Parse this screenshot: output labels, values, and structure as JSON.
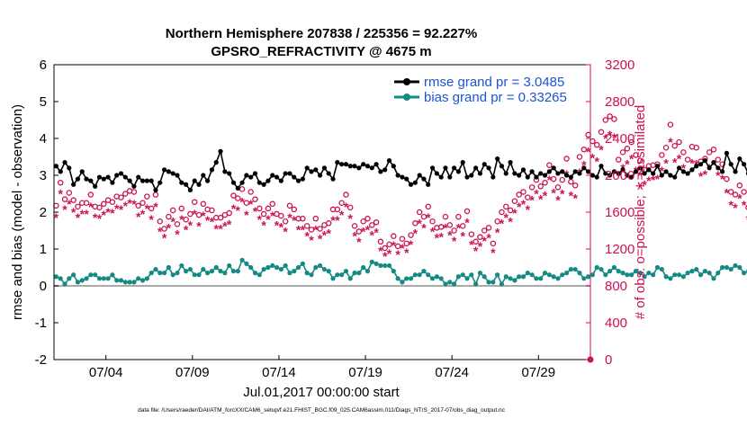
{
  "chart_data": {
    "type": "line",
    "title_line1": "Northern Hemisphere 207838 / 225356 = 92.227%",
    "title_line2": "GPSRO_REFRACTIVITY @ 4675 m",
    "ylabel_left": "rmse and bias (model - observation)",
    "ylabel_right": "# of obs: o=possible; ∗=assimilated",
    "xlabel": "Jul.01,2017 00:00:00 start",
    "footnote": "data file: /Users/raeder/DAI/ATM_forcXX/CAM6_setup/f.e21.FHIST_BGC.f09_025.CAM6assim.011/Diags_NTrS_2017-07/obs_diag_output.nc",
    "xlim": [
      1,
      32
    ],
    "ylim_left": [
      -2,
      6
    ],
    "ylim_right": [
      0,
      3200
    ],
    "x_ticks": [
      4,
      9,
      14,
      19,
      24,
      29
    ],
    "x_tick_labels": [
      "07/04",
      "07/09",
      "07/14",
      "07/19",
      "07/24",
      "07/29"
    ],
    "y_left_ticks": [
      -2,
      -1,
      0,
      1,
      2,
      3,
      4,
      5,
      6
    ],
    "y_left_tick_labels": [
      "-2",
      "-1",
      "0",
      "1",
      "2",
      "3",
      "4",
      "5",
      "6"
    ],
    "y_right_ticks": [
      0,
      400,
      800,
      1200,
      1600,
      2000,
      2400,
      2800,
      3200
    ],
    "y_right_tick_labels": [
      "0",
      "400",
      "800",
      "1200",
      "1600",
      "2000",
      "2400",
      "2800",
      "3200"
    ],
    "legend_position": "top-right",
    "legend": [
      {
        "key": "rmse",
        "label": "rmse grand pr = 3.0485"
      },
      {
        "key": "bias",
        "label": "bias grand pr = 0.33265"
      }
    ],
    "colors": {
      "rmse": "#000000",
      "bias": "#138a84",
      "obs": "#cc1155",
      "zero_line": "#aaaaaa",
      "legend_text": "#1a55d6"
    },
    "x_start": 1.125,
    "x_step": 0.25,
    "series": [
      {
        "name": "rmse",
        "values": [
          3.25,
          3.1,
          3.35,
          3.2,
          2.75,
          2.9,
          3.1,
          2.9,
          2.85,
          2.7,
          2.95,
          2.9,
          2.95,
          2.8,
          3.0,
          3.05,
          2.95,
          2.85,
          2.7,
          2.95,
          2.85,
          2.85,
          2.85,
          2.6,
          2.8,
          3.15,
          3.1,
          3.05,
          3.0,
          2.8,
          2.75,
          2.6,
          2.85,
          2.75,
          3.0,
          2.85,
          3.15,
          3.35,
          3.65,
          3.1,
          3.05,
          2.8,
          2.65,
          2.8,
          3.0,
          2.95,
          3.05,
          2.8,
          2.75,
          2.85,
          3.0,
          2.95,
          2.85,
          3.05,
          3.05,
          2.95,
          2.85,
          2.9,
          3.2,
          3.1,
          3.15,
          3.0,
          3.2,
          3.05,
          2.9,
          3.35,
          3.3,
          3.3,
          3.25,
          3.25,
          3.2,
          3.3,
          3.25,
          3.2,
          3.3,
          3.1,
          3.15,
          3.4,
          3.25,
          3.0,
          2.95,
          2.9,
          2.75,
          2.8,
          3.0,
          2.9,
          2.75,
          3.2,
          3.05,
          2.95,
          3.2,
          2.95,
          3.2,
          3.1,
          3.35,
          2.95,
          3.0,
          3.2,
          3.05,
          3.3,
          3.2,
          2.95,
          3.45,
          3.25,
          3.05,
          3.35,
          3.05,
          3.0,
          3.15,
          2.95,
          3.1,
          2.95,
          3.05,
          3.0,
          3.1,
          3.2,
          3.05,
          3.1,
          3.0,
          2.95,
          3.1,
          3.05,
          3.2,
          3.1,
          3.0,
          2.95,
          3.25,
          3.05,
          3.0,
          3.1,
          3.05,
          3.15,
          3.0,
          2.95,
          3.1,
          3.2,
          3.05,
          3.15,
          3.05,
          3.25,
          3.0,
          3.1,
          3.0,
          2.95,
          3.2,
          3.1,
          3.05,
          3.15,
          3.25,
          3.3,
          3.4,
          3.2,
          3.35,
          3.2,
          3.1,
          3.6,
          3.3,
          3.1,
          3.45,
          3.3,
          3.05,
          3.25,
          3.55,
          3.05,
          3.2,
          3.1,
          2.95,
          3.15,
          3.4,
          3.1,
          3.3,
          3.0,
          3.15,
          3.2,
          3.0,
          3.15,
          3.0,
          3.15,
          3.05,
          2.95,
          3.1,
          3.2,
          3.0,
          3.3,
          3.2,
          3.05,
          3.0,
          2.95,
          3.1,
          3.05,
          3.0,
          3.15,
          3.2,
          3.0,
          3.05,
          3.15,
          3.1,
          3.05,
          3.0,
          3.35,
          3.25,
          3.1,
          3.05,
          3.0,
          3.1,
          3.0,
          3.2,
          3.05,
          3.0,
          3.1,
          2.95,
          3.0,
          3.05,
          3.0,
          3.3,
          3.1,
          3.1,
          3.2,
          3.0,
          3.05,
          3.0,
          3.0,
          3.3,
          3.0,
          3.05,
          3.25,
          3.1,
          3.05,
          3.0,
          3.35,
          3.15,
          3.1,
          3.0,
          3.05,
          3.15,
          3.0,
          2.95,
          3.05,
          3.1,
          3.0,
          2.95,
          3.05,
          3.0,
          2.95,
          3.0,
          3.05,
          3.1,
          3.0,
          3.05,
          2.95,
          3.15,
          3.05,
          3.0,
          3.1,
          3.05,
          3.05,
          3.0,
          3.1,
          3.0,
          3.0,
          3.05,
          2.95,
          3.0,
          3.1,
          3.05,
          3.0,
          3.05,
          2.95,
          3.0,
          2.95,
          3.0,
          3.05,
          3.1,
          3.0,
          2.95
        ]
      },
      {
        "name": "bias",
        "values": [
          0.25,
          0.2,
          0.05,
          0.2,
          0.3,
          0.1,
          0.15,
          0.2,
          0.3,
          0.3,
          0.2,
          0.2,
          0.2,
          0.3,
          0.15,
          0.15,
          0.1,
          0.1,
          0.1,
          0.2,
          0.15,
          0.2,
          0.35,
          0.45,
          0.35,
          0.35,
          0.5,
          0.3,
          0.35,
          0.55,
          0.4,
          0.45,
          0.3,
          0.3,
          0.45,
          0.35,
          0.4,
          0.5,
          0.4,
          0.35,
          0.55,
          0.4,
          0.4,
          0.7,
          0.6,
          0.5,
          0.35,
          0.3,
          0.45,
          0.5,
          0.55,
          0.5,
          0.45,
          0.55,
          0.35,
          0.4,
          0.5,
          0.6,
          0.35,
          0.3,
          0.5,
          0.55,
          0.45,
          0.4,
          0.2,
          0.3,
          0.3,
          0.4,
          0.2,
          0.35,
          0.35,
          0.5,
          0.4,
          0.65,
          0.6,
          0.55,
          0.55,
          0.55,
          0.4,
          0.2,
          0.1,
          0.2,
          0.2,
          0.3,
          0.3,
          0.4,
          0.3,
          0.2,
          0.25,
          0.2,
          0.05,
          0.1,
          0.05,
          0.25,
          0.3,
          0.2,
          0.3,
          0.05,
          0.35,
          0.25,
          0.1,
          0.1,
          0.3,
          0.05,
          0.25,
          0.2,
          0.15,
          0.25,
          0.25,
          0.35,
          0.3,
          0.2,
          0.2,
          0.35,
          0.3,
          0.25,
          0.2,
          0.3,
          0.35,
          0.45,
          0.45,
          0.35,
          0.2,
          0.25,
          0.3,
          0.5,
          0.45,
          0.3,
          0.4,
          0.5,
          0.4,
          0.35,
          0.3,
          0.3,
          0.4,
          0.35,
          0.25,
          0.35,
          0.3,
          0.5,
          0.45,
          0.25,
          0.2,
          0.3,
          0.3,
          0.25,
          0.35,
          0.4,
          0.45,
          0.3,
          0.4,
          0.35,
          0.2,
          0.35,
          0.5,
          0.5,
          0.45,
          0.55,
          0.5,
          0.35,
          0.4,
          0.5,
          0.35,
          0.45,
          0.35,
          0.5,
          0.35,
          0.4,
          0.3,
          0.4,
          0.35,
          0.45,
          0.25,
          0.3,
          0.25,
          0.35,
          0.3,
          0.2,
          0.3,
          0.3,
          0.35,
          0.25,
          0.3,
          0.3,
          0.35,
          0.4,
          0.3,
          0.3,
          0.35,
          0.25,
          0.15,
          0.25,
          0.35,
          0.3,
          0.35,
          0.35,
          0.4,
          0.3,
          0.3,
          0.35,
          0.4,
          0.45,
          0.4,
          0.2,
          0.35,
          0.3,
          0.35,
          0.45,
          0.3,
          0.25,
          0.3,
          0.4,
          0.25,
          0.4,
          0.35,
          0.5,
          0.3,
          0.35,
          0.3,
          0.3,
          0.4,
          0.45,
          0.35,
          0.25,
          0.2,
          0.4,
          0.35,
          0.3,
          0.4,
          0.55,
          0.4,
          0.45,
          0.35,
          0.4,
          0.35,
          0.3,
          0.25,
          0.35,
          0.4,
          0.5,
          0.65,
          0.5,
          0.45,
          0.4,
          0.35,
          0.3,
          0.45,
          0.3,
          0.35,
          0.4,
          0.55,
          0.45,
          0.35,
          0.3,
          0.3,
          0.35,
          0.3,
          0.25,
          0.35,
          0.3,
          0.25,
          0.3,
          0.35,
          0.3,
          0.25,
          0.3,
          0.3,
          0.35,
          0.4,
          0.3,
          0.25,
          0.2
        ]
      },
      {
        "name": "obs_possible",
        "values": [
          1670,
          1920,
          1740,
          1810,
          1730,
          1660,
          1700,
          1700,
          1790,
          1660,
          1650,
          1690,
          1730,
          1710,
          1770,
          1760,
          1800,
          1830,
          1820,
          1670,
          1700,
          1770,
          1640,
          1790,
          1500,
          1420,
          1550,
          1620,
          1470,
          1640,
          1520,
          1580,
          1710,
          1570,
          1690,
          1630,
          1620,
          1540,
          1540,
          1570,
          1590,
          1780,
          1750,
          1850,
          1700,
          1820,
          1740,
          1640,
          1580,
          1640,
          1690,
          1580,
          1560,
          1500,
          1670,
          1630,
          1530,
          1530,
          1450,
          1410,
          1530,
          1420,
          1460,
          1480,
          1630,
          1630,
          1700,
          1790,
          1650,
          1450,
          1390,
          1500,
          1530,
          1460,
          1490,
          1280,
          1210,
          1250,
          1340,
          1230,
          1310,
          1260,
          1350,
          1480,
          1600,
          1550,
          1660,
          1500,
          1430,
          1440,
          1550,
          1460,
          1400,
          1550,
          1450,
          1610,
          1360,
          1280,
          1330,
          1400,
          1430,
          1260,
          1500,
          1600,
          1660,
          1620,
          1720,
          1790,
          1820,
          1760,
          1870,
          1950,
          1880,
          1920,
          2110,
          1960,
          1870,
          1950,
          2180,
          1930,
          1890,
          2200,
          2280,
          2440,
          2370,
          2330,
          2470,
          2600,
          2640,
          2610,
          2170,
          2250,
          2290,
          2360,
          2220,
          2160,
          2060,
          2100,
          2110,
          2120,
          2220,
          2300,
          2550,
          2320,
          2360,
          2250,
          2170,
          2310,
          2300,
          2150,
          2180,
          2250,
          2280,
          2170,
          2120,
          1960,
          1820,
          1790,
          1890,
          1820,
          1650,
          1670,
          1820,
          1870,
          1840,
          1870,
          1920,
          1860,
          1800,
          1850,
          1880,
          1800,
          1730,
          1650,
          1810,
          1850,
          1790,
          1800,
          1770,
          1870,
          1780,
          1840,
          1780,
          1840,
          1750,
          1720,
          1900,
          1690,
          1790,
          1810,
          1920,
          1780,
          1860,
          1750,
          1790,
          1850,
          1920,
          1760,
          1790,
          1860,
          1810,
          1780,
          1850,
          1820,
          1740,
          1720,
          1850,
          1860,
          1890,
          1740,
          1830,
          1780,
          1700,
          1620,
          1680,
          1750,
          1690,
          1620,
          1580,
          1590,
          1530,
          1600,
          1540,
          1520,
          1500,
          1470,
          1410,
          1570,
          1560,
          1720,
          1650,
          1680,
          1750,
          1830,
          1640,
          1520,
          1450,
          1480,
          1420,
          1520,
          1530,
          1610,
          1580,
          1510,
          1500,
          1560,
          1490,
          1450,
          1420,
          1400,
          1490,
          1450,
          1490,
          1520,
          1430,
          1380,
          1410,
          1450,
          1490,
          1570,
          1410,
          1340,
          1400,
          1360,
          1480,
          1550
        ]
      },
      {
        "name": "obs_assimilated",
        "values": [
          1540,
          1800,
          1630,
          1690,
          1600,
          1540,
          1580,
          1580,
          1660,
          1540,
          1530,
          1570,
          1600,
          1590,
          1640,
          1630,
          1670,
          1700,
          1690,
          1550,
          1580,
          1640,
          1520,
          1660,
          1390,
          1320,
          1430,
          1500,
          1360,
          1520,
          1410,
          1460,
          1580,
          1450,
          1560,
          1510,
          1500,
          1420,
          1420,
          1450,
          1470,
          1640,
          1620,
          1710,
          1570,
          1690,
          1610,
          1520,
          1460,
          1520,
          1560,
          1460,
          1440,
          1390,
          1540,
          1510,
          1410,
          1410,
          1340,
          1300,
          1410,
          1310,
          1350,
          1370,
          1510,
          1510,
          1570,
          1660,
          1530,
          1340,
          1280,
          1390,
          1410,
          1350,
          1380,
          1180,
          1120,
          1150,
          1240,
          1140,
          1210,
          1160,
          1250,
          1370,
          1480,
          1430,
          1540,
          1390,
          1320,
          1330,
          1430,
          1350,
          1290,
          1430,
          1340,
          1490,
          1250,
          1180,
          1230,
          1290,
          1320,
          1160,
          1380,
          1480,
          1540,
          1500,
          1590,
          1660,
          1690,
          1630,
          1730,
          1800,
          1740,
          1780,
          1950,
          1810,
          1730,
          1800,
          2010,
          1780,
          1750,
          2030,
          2110,
          2260,
          2190,
          2150,
          2280,
          2400,
          2440,
          2410,
          2000,
          2080,
          2120,
          2180,
          2050,
          2000,
          1900,
          1940,
          1950,
          1960,
          2050,
          2130,
          2360,
          2140,
          2180,
          2080,
          2000,
          2130,
          2120,
          1990,
          2010,
          2080,
          2110,
          2000,
          1960,
          1810,
          1680,
          1650,
          1750,
          1680,
          1520,
          1540,
          1680,
          1730,
          1700,
          1730,
          1780,
          1720,
          1660,
          1710,
          1740,
          1660,
          1600,
          1520,
          1670,
          1710,
          1650,
          1660,
          1640,
          1730,
          1640,
          1700,
          1640,
          1700,
          1610,
          1590,
          1760,
          1560,
          1650,
          1670,
          1780,
          1640,
          1720,
          1610,
          1650,
          1710,
          1780,
          1620,
          1650,
          1720,
          1670,
          1640,
          1710,
          1680,
          1600,
          1590,
          1710,
          1720,
          1750,
          1610,
          1690,
          1640,
          1570,
          1490,
          1550,
          1620,
          1560,
          1490,
          1460,
          1470,
          1410,
          1480,
          1420,
          1400,
          1380,
          1360,
          1300,
          1450,
          1440,
          1590,
          1520,
          1550,
          1620,
          1690,
          1510,
          1400,
          1340,
          1370,
          1310,
          1400,
          1410,
          1490,
          1460,
          1390,
          1380,
          1440,
          1370,
          1340,
          1310,
          1290,
          1380,
          1340,
          1380,
          1400,
          1320,
          1270,
          1300,
          1340,
          1380,
          1450,
          1300,
          1230,
          1290,
          1250,
          1370,
          1430
        ]
      }
    ]
  }
}
